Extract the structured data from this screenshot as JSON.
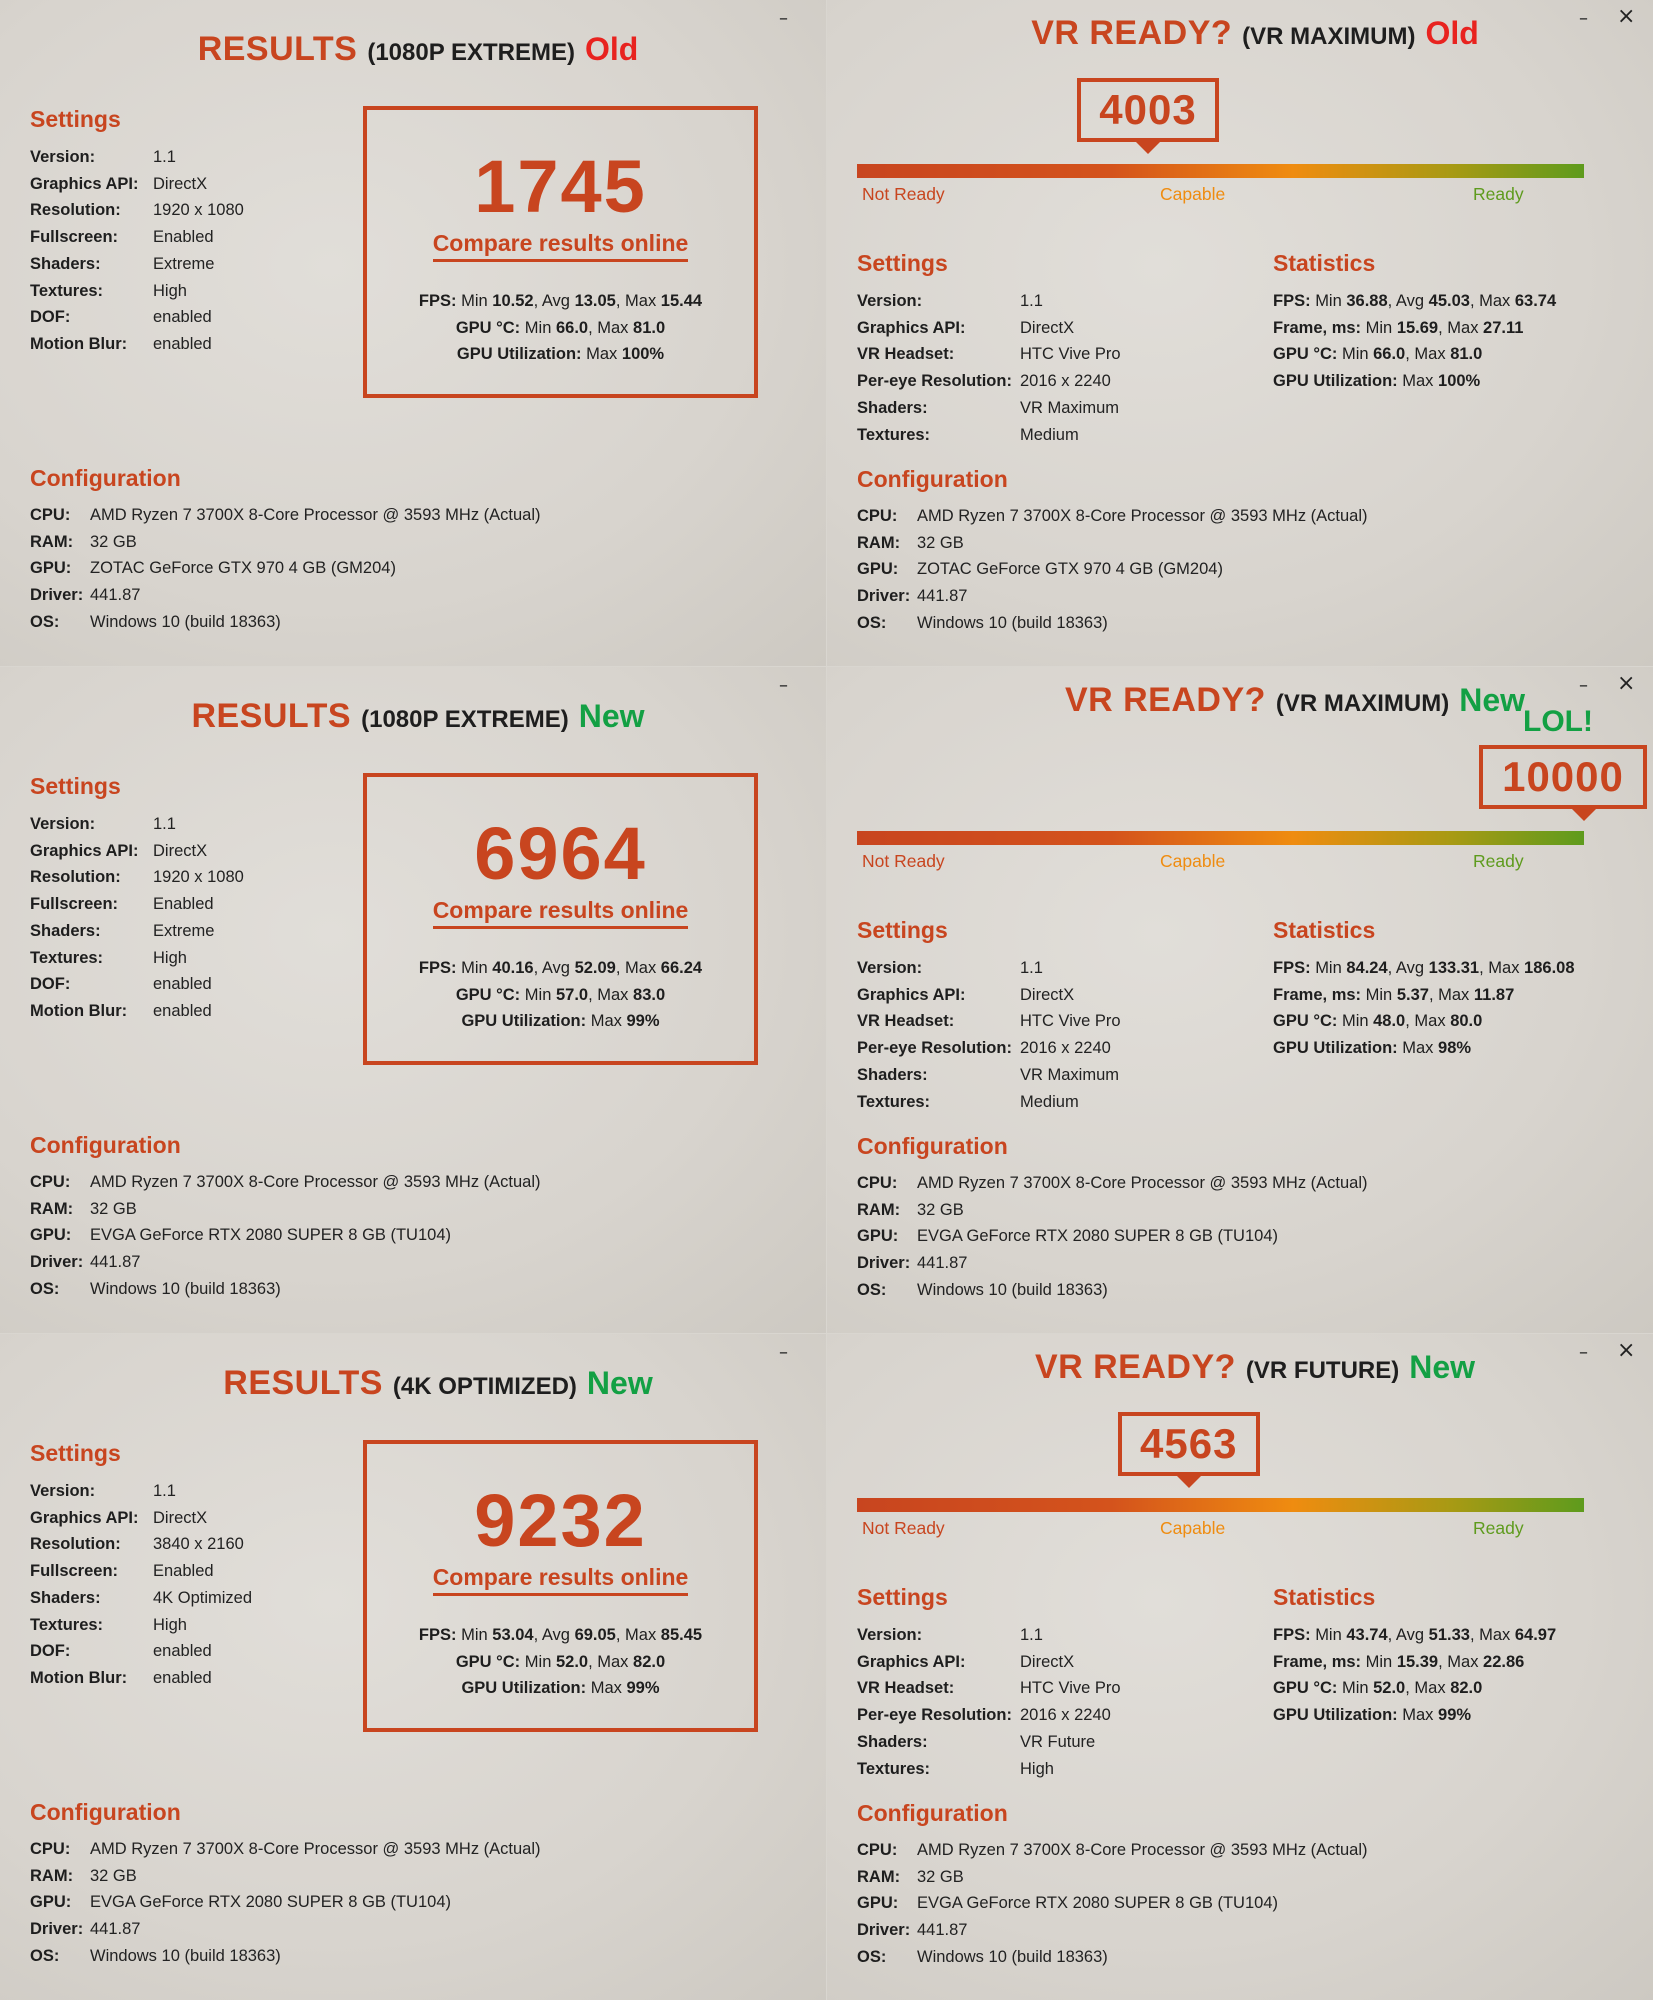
{
  "colors": {
    "accent": "#c8451f",
    "old": "#e8231f",
    "new": "#13a044",
    "text": "#1e1e1e",
    "not_ready": "#c8451f",
    "capable": "#ef8c10",
    "ready": "#5e9b1d"
  },
  "window_controls": {
    "minimize": "–",
    "close": "×"
  },
  "labels": {
    "settings": "Settings",
    "configuration": "Configuration",
    "statistics": "Statistics",
    "compare": "Compare results online",
    "not_ready": "Not Ready",
    "capable": "Capable",
    "ready": "Ready",
    "results": "RESULTS",
    "vr_ready": "VR READY?"
  },
  "result_key_labels": [
    "Version:",
    "Graphics API:",
    "Resolution:",
    "Fullscreen:",
    "Shaders:",
    "Textures:",
    "DOF:",
    "Motion Blur:"
  ],
  "vr_key_labels": [
    "Version:",
    "Graphics API:",
    "VR Headset:",
    "Per-eye Resolution:",
    "Shaders:",
    "Textures:"
  ],
  "config_key_labels": [
    "CPU:",
    "RAM:",
    "GPU:",
    "Driver:",
    "OS:"
  ],
  "results_panels": [
    {
      "subtitle": "(1080P EXTREME)",
      "tag": "Old",
      "tag_color": "#e8231f",
      "settings": [
        "1.1",
        "DirectX",
        "1920 x 1080",
        "Enabled",
        "Extreme",
        "High",
        "enabled",
        "enabled"
      ],
      "score": "1745",
      "fps": {
        "label": "FPS:",
        "min_l": "Min",
        "min": "10.52",
        "avg_l": "Avg",
        "avg": "13.05",
        "max_l": "Max",
        "max": "15.44"
      },
      "gpu_temp": {
        "label": "GPU °C:",
        "min_l": "Min",
        "min": "66.0",
        "max_l": "Max",
        "max": "81.0"
      },
      "gpu_util": {
        "label": "GPU Utilization:",
        "max_l": "Max",
        "max": "100%"
      },
      "config": [
        "AMD Ryzen 7 3700X 8-Core Processor @ 3593 MHz (Actual)",
        "32 GB",
        "ZOTAC GeForce GTX 970 4 GB (GM204)",
        "441.87",
        "Windows 10 (build 18363)"
      ]
    },
    {
      "subtitle": "(1080P EXTREME)",
      "tag": "New",
      "tag_color": "#13a044",
      "settings": [
        "1.1",
        "DirectX",
        "1920 x 1080",
        "Enabled",
        "Extreme",
        "High",
        "enabled",
        "enabled"
      ],
      "score": "6964",
      "fps": {
        "label": "FPS:",
        "min_l": "Min",
        "min": "40.16",
        "avg_l": "Avg",
        "avg": "52.09",
        "max_l": "Max",
        "max": "66.24"
      },
      "gpu_temp": {
        "label": "GPU °C:",
        "min_l": "Min",
        "min": "57.0",
        "max_l": "Max",
        "max": "83.0"
      },
      "gpu_util": {
        "label": "GPU Utilization:",
        "max_l": "Max",
        "max": "99%"
      },
      "config": [
        "AMD Ryzen 7 3700X 8-Core Processor @ 3593 MHz (Actual)",
        "32 GB",
        "EVGA GeForce RTX 2080 SUPER 8 GB (TU104)",
        "441.87",
        "Windows 10 (build 18363)"
      ]
    },
    {
      "subtitle": "(4K OPTIMIZED)",
      "tag": "New",
      "tag_color": "#13a044",
      "settings": [
        "1.1",
        "DirectX",
        "3840 x 2160",
        "Enabled",
        "4K Optimized",
        "High",
        "enabled",
        "enabled"
      ],
      "score": "9232",
      "fps": {
        "label": "FPS:",
        "min_l": "Min",
        "min": "53.04",
        "avg_l": "Avg",
        "avg": "69.05",
        "max_l": "Max",
        "max": "85.45"
      },
      "gpu_temp": {
        "label": "GPU °C:",
        "min_l": "Min",
        "min": "52.0",
        "max_l": "Max",
        "max": "82.0"
      },
      "gpu_util": {
        "label": "GPU Utilization:",
        "max_l": "Max",
        "max": "99%"
      },
      "config": [
        "AMD Ryzen 7 3700X 8-Core Processor @ 3593 MHz (Actual)",
        "32 GB",
        "EVGA GeForce RTX 2080 SUPER 8 GB (TU104)",
        "441.87",
        "Windows 10 (build 18363)"
      ]
    }
  ],
  "vr_panels": [
    {
      "subtitle": "(VR MAXIMUM)",
      "tag": "Old",
      "tag_color": "#e8231f",
      "score": "4003",
      "score_fraction": 0.4003,
      "lol": "",
      "settings": [
        "1.1",
        "DirectX",
        "HTC Vive Pro",
        "2016 x 2240",
        "VR Maximum",
        "Medium"
      ],
      "stats": [
        {
          "k": "FPS:",
          "parts": [
            [
              "Min ",
              "36.88"
            ],
            [
              ", Avg ",
              "45.03"
            ],
            [
              ", Max ",
              "63.74"
            ]
          ]
        },
        {
          "k": "Frame, ms:",
          "parts": [
            [
              "Min ",
              "15.69"
            ],
            [
              ", Max ",
              "27.11"
            ]
          ]
        },
        {
          "k": "GPU °C:",
          "parts": [
            [
              "Min ",
              "66.0"
            ],
            [
              ", Max ",
              "81.0"
            ]
          ]
        },
        {
          "k": "GPU Utilization:",
          "parts": [
            [
              "Max ",
              "100%"
            ]
          ]
        }
      ],
      "config": [
        "AMD Ryzen 7 3700X 8-Core Processor @ 3593 MHz (Actual)",
        "32 GB",
        "ZOTAC GeForce GTX 970 4 GB (GM204)",
        "441.87",
        "Windows 10 (build 18363)"
      ]
    },
    {
      "subtitle": "(VR MAXIMUM)",
      "tag": "New",
      "tag_color": "#13a044",
      "score": "10000",
      "score_fraction": 1.0,
      "lol": "LOL!",
      "settings": [
        "1.1",
        "DirectX",
        "HTC Vive Pro",
        "2016 x 2240",
        "VR Maximum",
        "Medium"
      ],
      "stats": [
        {
          "k": "FPS:",
          "parts": [
            [
              "Min ",
              "84.24"
            ],
            [
              ", Avg ",
              "133.31"
            ],
            [
              ", Max ",
              "186.08"
            ]
          ]
        },
        {
          "k": "Frame, ms:",
          "parts": [
            [
              "Min ",
              "5.37"
            ],
            [
              ", Max ",
              "11.87"
            ]
          ]
        },
        {
          "k": "GPU °C:",
          "parts": [
            [
              "Min ",
              "48.0"
            ],
            [
              ", Max ",
              "80.0"
            ]
          ]
        },
        {
          "k": "GPU Utilization:",
          "parts": [
            [
              "Max ",
              "98%"
            ]
          ]
        }
      ],
      "config": [
        "AMD Ryzen 7 3700X 8-Core Processor @ 3593 MHz (Actual)",
        "32 GB",
        "EVGA GeForce RTX 2080 SUPER 8 GB (TU104)",
        "441.87",
        "Windows 10 (build 18363)"
      ]
    },
    {
      "subtitle": "(VR FUTURE)",
      "tag": "New",
      "tag_color": "#13a044",
      "score": "4563",
      "score_fraction": 0.4563,
      "lol": "",
      "settings": [
        "1.1",
        "DirectX",
        "HTC Vive Pro",
        "2016 x 2240",
        "VR Future",
        "High"
      ],
      "stats": [
        {
          "k": "FPS:",
          "parts": [
            [
              "Min ",
              "43.74"
            ],
            [
              ", Avg ",
              "51.33"
            ],
            [
              ", Max ",
              "64.97"
            ]
          ]
        },
        {
          "k": "Frame, ms:",
          "parts": [
            [
              "Min ",
              "15.39"
            ],
            [
              ", Max ",
              "22.86"
            ]
          ]
        },
        {
          "k": "GPU °C:",
          "parts": [
            [
              "Min ",
              "52.0"
            ],
            [
              ", Max ",
              "82.0"
            ]
          ]
        },
        {
          "k": "GPU Utilization:",
          "parts": [
            [
              "Max ",
              "99%"
            ]
          ]
        }
      ],
      "config": [
        "AMD Ryzen 7 3700X 8-Core Processor @ 3593 MHz (Actual)",
        "32 GB",
        "EVGA GeForce RTX 2080 SUPER 8 GB (TU104)",
        "441.87",
        "Windows 10 (build 18363)"
      ]
    }
  ]
}
